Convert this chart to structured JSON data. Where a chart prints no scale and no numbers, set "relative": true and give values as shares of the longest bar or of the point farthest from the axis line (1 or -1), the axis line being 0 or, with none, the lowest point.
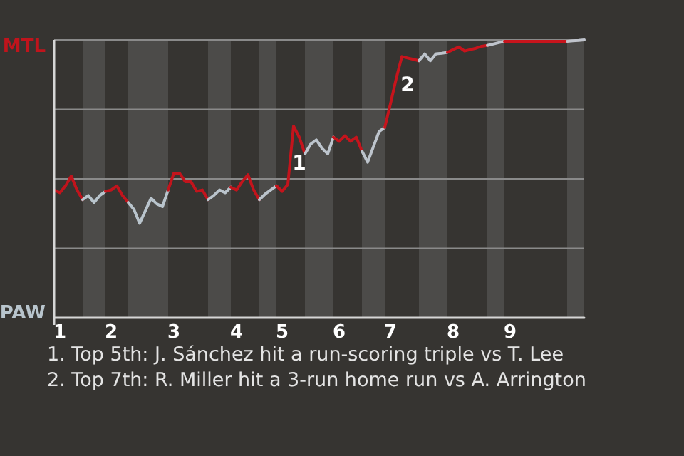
{
  "chart_data": {
    "type": "line",
    "relative": true,
    "categories": [
      null,
      "1",
      null,
      null,
      null,
      null,
      null,
      null,
      null,
      null,
      "2",
      null,
      null,
      null,
      null,
      null,
      null,
      null,
      null,
      null,
      null,
      "3",
      null,
      null,
      null,
      null,
      null,
      null,
      null,
      null,
      null,
      null,
      "4",
      null,
      null,
      null,
      null,
      null,
      null,
      null,
      "5",
      null,
      null,
      null,
      null,
      null,
      null,
      null,
      null,
      null,
      "6",
      null,
      null,
      null,
      null,
      null,
      null,
      null,
      null,
      "7",
      null,
      null,
      null,
      null,
      null,
      null,
      null,
      null,
      null,
      null,
      "8",
      null,
      null,
      null,
      null,
      null,
      null,
      null,
      null,
      null,
      "9",
      null,
      null,
      null,
      null,
      null,
      null,
      null,
      null,
      null,
      null,
      null,
      null,
      null
    ],
    "series": [
      {
        "color": "#c0141c",
        "values": [
          0.46,
          0.45,
          0.475,
          0.51,
          0.46,
          0.425,
          null,
          null,
          null,
          null,
          null,
          null,
          null,
          null,
          null,
          null,
          null,
          null,
          null,
          null,
          null,
          null,
          null,
          null,
          null,
          null,
          null,
          null,
          null,
          null,
          null,
          null,
          null,
          null,
          null,
          null,
          null,
          null,
          null,
          null,
          null,
          null,
          null,
          null,
          null,
          null,
          null,
          null,
          null,
          null,
          null,
          null,
          null,
          null,
          null,
          null,
          null,
          null,
          null,
          null,
          null,
          null,
          null,
          null,
          null,
          null,
          null,
          null,
          null,
          null,
          null,
          null,
          null,
          null,
          null,
          null,
          null,
          null,
          null,
          null,
          null,
          null,
          null,
          null,
          null,
          null,
          null,
          null,
          null,
          null,
          null,
          null,
          null,
          null
        ]
      },
      {
        "color": "#b8c4cc",
        "values": [
          null,
          null,
          null,
          null,
          null,
          0.425,
          0.44,
          0.415,
          0.44,
          0.455,
          null,
          null,
          null,
          null,
          null,
          null,
          null,
          null,
          null,
          null,
          null,
          null,
          null,
          null,
          null,
          null,
          null,
          null,
          null,
          null,
          null,
          null,
          null,
          null,
          null,
          null,
          null,
          null,
          null,
          null,
          null,
          null,
          null,
          null,
          null,
          null,
          null,
          null,
          null,
          null,
          null,
          null,
          null,
          null,
          null,
          null,
          null,
          null,
          null,
          null,
          null,
          null,
          null,
          null,
          null,
          null,
          null,
          null,
          null,
          null,
          null,
          null,
          null,
          null,
          null,
          null,
          null,
          null,
          null,
          null,
          null,
          null,
          null,
          null,
          null,
          null,
          null,
          null,
          null,
          null,
          null,
          null,
          null,
          null
        ]
      },
      {
        "color": "#c1141c",
        "values": [
          null,
          null,
          null,
          null,
          null,
          null,
          null,
          null,
          null,
          0.455,
          0.46,
          0.475,
          0.44,
          0.415,
          null,
          null,
          null,
          null,
          null,
          null,
          null,
          null,
          null,
          null,
          null,
          null,
          null,
          null,
          null,
          null,
          null,
          null,
          null,
          null,
          null,
          null,
          null,
          null,
          null,
          null,
          null,
          null,
          null,
          null,
          null,
          null,
          null,
          null,
          null,
          null,
          null,
          null,
          null,
          null,
          null,
          null,
          null,
          null,
          null,
          null,
          null,
          null,
          null,
          null,
          null,
          null,
          null,
          null,
          null,
          null,
          null,
          null,
          null,
          null,
          null,
          null,
          null,
          null,
          null,
          null,
          null,
          null,
          null,
          null,
          null,
          null,
          null,
          null,
          null,
          null,
          null,
          null,
          null,
          null
        ]
      },
      {
        "color": "#b9c4cc",
        "values": [
          null,
          null,
          null,
          null,
          null,
          null,
          null,
          null,
          null,
          null,
          null,
          null,
          null,
          0.415,
          0.39,
          0.34,
          0.385,
          0.43,
          0.41,
          0.4,
          0.46,
          null,
          null,
          null,
          null,
          null,
          null,
          null,
          null,
          null,
          null,
          null,
          null,
          null,
          null,
          null,
          null,
          null,
          null,
          null,
          null,
          null,
          null,
          null,
          null,
          null,
          null,
          null,
          null,
          null,
          null,
          null,
          null,
          null,
          null,
          null,
          null,
          null,
          null,
          null,
          null,
          null,
          null,
          null,
          null,
          null,
          null,
          null,
          null,
          null,
          null,
          null,
          null,
          null,
          null,
          null,
          null,
          null,
          null,
          null,
          null,
          null,
          null,
          null,
          null,
          null,
          null,
          null,
          null,
          null,
          null,
          null,
          null,
          null
        ]
      },
      {
        "color": "#c2141c",
        "values": [
          null,
          null,
          null,
          null,
          null,
          null,
          null,
          null,
          null,
          null,
          null,
          null,
          null,
          null,
          null,
          null,
          null,
          null,
          null,
          null,
          0.46,
          0.52,
          0.52,
          0.49,
          0.49,
          0.455,
          0.46,
          0.425,
          null,
          null,
          null,
          null,
          null,
          null,
          null,
          null,
          null,
          null,
          null,
          null,
          null,
          null,
          null,
          null,
          null,
          null,
          null,
          null,
          null,
          null,
          null,
          null,
          null,
          null,
          null,
          null,
          null,
          null,
          null,
          null,
          null,
          null,
          null,
          null,
          null,
          null,
          null,
          null,
          null,
          null,
          null,
          null,
          null,
          null,
          null,
          null,
          null,
          null,
          null,
          null,
          null,
          null,
          null,
          null,
          null,
          null,
          null,
          null,
          null,
          null,
          null,
          null,
          null,
          null
        ]
      },
      {
        "color": "#bac4cc",
        "values": [
          null,
          null,
          null,
          null,
          null,
          null,
          null,
          null,
          null,
          null,
          null,
          null,
          null,
          null,
          null,
          null,
          null,
          null,
          null,
          null,
          null,
          null,
          null,
          null,
          null,
          null,
          null,
          0.425,
          0.44,
          0.46,
          0.45,
          0.47,
          null,
          null,
          null,
          null,
          null,
          null,
          null,
          null,
          null,
          null,
          null,
          null,
          null,
          null,
          null,
          null,
          null,
          null,
          null,
          null,
          null,
          null,
          null,
          null,
          null,
          null,
          null,
          null,
          null,
          null,
          null,
          null,
          null,
          null,
          null,
          null,
          null,
          null,
          null,
          null,
          null,
          null,
          null,
          null,
          null,
          null,
          null,
          null,
          null,
          null,
          null,
          null,
          null,
          null,
          null,
          null,
          null,
          null,
          null,
          null,
          null,
          null
        ]
      },
      {
        "color": "#c3141c",
        "values": [
          null,
          null,
          null,
          null,
          null,
          null,
          null,
          null,
          null,
          null,
          null,
          null,
          null,
          null,
          null,
          null,
          null,
          null,
          null,
          null,
          null,
          null,
          null,
          null,
          null,
          null,
          null,
          null,
          null,
          null,
          null,
          0.47,
          0.46,
          0.49,
          0.515,
          0.46,
          0.425,
          null,
          null,
          null,
          null,
          null,
          null,
          null,
          null,
          null,
          null,
          null,
          null,
          null,
          null,
          null,
          null,
          null,
          null,
          null,
          null,
          null,
          null,
          null,
          null,
          null,
          null,
          null,
          null,
          null,
          null,
          null,
          null,
          null,
          null,
          null,
          null,
          null,
          null,
          null,
          null,
          null,
          null,
          null,
          null,
          null,
          null,
          null,
          null,
          null,
          null,
          null,
          null,
          null,
          null,
          null,
          null,
          null
        ]
      },
      {
        "color": "#bbc4cc",
        "values": [
          null,
          null,
          null,
          null,
          null,
          null,
          null,
          null,
          null,
          null,
          null,
          null,
          null,
          null,
          null,
          null,
          null,
          null,
          null,
          null,
          null,
          null,
          null,
          null,
          null,
          null,
          null,
          null,
          null,
          null,
          null,
          null,
          null,
          null,
          null,
          null,
          0.425,
          0.445,
          0.46,
          0.475,
          null,
          null,
          null,
          null,
          null,
          null,
          null,
          null,
          null,
          null,
          null,
          null,
          null,
          null,
          null,
          null,
          null,
          null,
          null,
          null,
          null,
          null,
          null,
          null,
          null,
          null,
          null,
          null,
          null,
          null,
          null,
          null,
          null,
          null,
          null,
          null,
          null,
          null,
          null,
          null,
          null,
          null,
          null,
          null,
          null,
          null,
          null,
          null,
          null,
          null,
          null,
          null,
          null,
          null
        ]
      },
      {
        "color": "#c4141c",
        "values": [
          null,
          null,
          null,
          null,
          null,
          null,
          null,
          null,
          null,
          null,
          null,
          null,
          null,
          null,
          null,
          null,
          null,
          null,
          null,
          null,
          null,
          null,
          null,
          null,
          null,
          null,
          null,
          null,
          null,
          null,
          null,
          null,
          null,
          null,
          null,
          null,
          null,
          null,
          null,
          0.475,
          0.455,
          0.48,
          0.69,
          0.65,
          0.59,
          null,
          null,
          null,
          null,
          null,
          null,
          null,
          null,
          null,
          null,
          null,
          null,
          null,
          null,
          null,
          null,
          null,
          null,
          null,
          null,
          null,
          null,
          null,
          null,
          null,
          null,
          null,
          null,
          null,
          null,
          null,
          null,
          null,
          null,
          null,
          null,
          null,
          null,
          null,
          null,
          null,
          null,
          null,
          null,
          null,
          null,
          null,
          null,
          null
        ]
      },
      {
        "color": "#bcc4cc",
        "values": [
          null,
          null,
          null,
          null,
          null,
          null,
          null,
          null,
          null,
          null,
          null,
          null,
          null,
          null,
          null,
          null,
          null,
          null,
          null,
          null,
          null,
          null,
          null,
          null,
          null,
          null,
          null,
          null,
          null,
          null,
          null,
          null,
          null,
          null,
          null,
          null,
          null,
          null,
          null,
          null,
          null,
          null,
          null,
          null,
          0.59,
          0.625,
          0.64,
          0.61,
          0.59,
          0.65,
          null,
          null,
          null,
          null,
          null,
          null,
          null,
          null,
          null,
          null,
          null,
          null,
          null,
          null,
          null,
          null,
          null,
          null,
          null,
          null,
          null,
          null,
          null,
          null,
          null,
          null,
          null,
          null,
          null,
          null,
          null,
          null,
          null,
          null,
          null,
          null,
          null,
          null,
          null,
          null,
          null,
          null,
          null,
          null
        ]
      },
      {
        "color": "#c5141c",
        "values": [
          null,
          null,
          null,
          null,
          null,
          null,
          null,
          null,
          null,
          null,
          null,
          null,
          null,
          null,
          null,
          null,
          null,
          null,
          null,
          null,
          null,
          null,
          null,
          null,
          null,
          null,
          null,
          null,
          null,
          null,
          null,
          null,
          null,
          null,
          null,
          null,
          null,
          null,
          null,
          null,
          null,
          null,
          null,
          null,
          null,
          null,
          null,
          null,
          null,
          0.65,
          0.635,
          0.655,
          0.635,
          0.65,
          0.6,
          null,
          null,
          null,
          null,
          null,
          null,
          null,
          null,
          null,
          null,
          null,
          null,
          null,
          null,
          null,
          null,
          null,
          null,
          null,
          null,
          null,
          null,
          null,
          null,
          null,
          null,
          null,
          null,
          null,
          null,
          null,
          null,
          null,
          null,
          null,
          null,
          null,
          null,
          null
        ]
      },
      {
        "color": "#bdc4cc",
        "values": [
          null,
          null,
          null,
          null,
          null,
          null,
          null,
          null,
          null,
          null,
          null,
          null,
          null,
          null,
          null,
          null,
          null,
          null,
          null,
          null,
          null,
          null,
          null,
          null,
          null,
          null,
          null,
          null,
          null,
          null,
          null,
          null,
          null,
          null,
          null,
          null,
          null,
          null,
          null,
          null,
          null,
          null,
          null,
          null,
          null,
          null,
          null,
          null,
          null,
          null,
          null,
          null,
          null,
          null,
          0.6,
          0.56,
          0.615,
          0.67,
          0.685,
          null,
          null,
          null,
          null,
          null,
          null,
          null,
          null,
          null,
          null,
          null,
          null,
          null,
          null,
          null,
          null,
          null,
          null,
          null,
          null,
          null,
          null,
          null,
          null,
          null,
          null,
          null,
          null,
          null,
          null,
          null,
          null,
          null,
          null,
          null
        ]
      },
      {
        "color": "#c6141c",
        "values": [
          null,
          null,
          null,
          null,
          null,
          null,
          null,
          null,
          null,
          null,
          null,
          null,
          null,
          null,
          null,
          null,
          null,
          null,
          null,
          null,
          null,
          null,
          null,
          null,
          null,
          null,
          null,
          null,
          null,
          null,
          null,
          null,
          null,
          null,
          null,
          null,
          null,
          null,
          null,
          null,
          null,
          null,
          null,
          null,
          null,
          null,
          null,
          null,
          null,
          null,
          null,
          null,
          null,
          null,
          null,
          null,
          null,
          null,
          0.685,
          0.77,
          0.86,
          0.94,
          0.935,
          0.93,
          0.925,
          null,
          null,
          null,
          null,
          null,
          null,
          null,
          null,
          null,
          null,
          null,
          null,
          null,
          null,
          null,
          null,
          null,
          null,
          null,
          null,
          null,
          null,
          null,
          null,
          null,
          null,
          null,
          null,
          null
        ]
      },
      {
        "color": "#bec4cc",
        "values": [
          null,
          null,
          null,
          null,
          null,
          null,
          null,
          null,
          null,
          null,
          null,
          null,
          null,
          null,
          null,
          null,
          null,
          null,
          null,
          null,
          null,
          null,
          null,
          null,
          null,
          null,
          null,
          null,
          null,
          null,
          null,
          null,
          null,
          null,
          null,
          null,
          null,
          null,
          null,
          null,
          null,
          null,
          null,
          null,
          null,
          null,
          null,
          null,
          null,
          null,
          null,
          null,
          null,
          null,
          null,
          null,
          null,
          null,
          null,
          null,
          null,
          null,
          null,
          null,
          0.925,
          0.95,
          0.925,
          0.95,
          0.952,
          0.955,
          null,
          null,
          null,
          null,
          null,
          null,
          null,
          null,
          null,
          null,
          null,
          null,
          null,
          null,
          null,
          null,
          null,
          null,
          null,
          null,
          null,
          null,
          null,
          null
        ]
      },
      {
        "color": "#c7141c",
        "values": [
          null,
          null,
          null,
          null,
          null,
          null,
          null,
          null,
          null,
          null,
          null,
          null,
          null,
          null,
          null,
          null,
          null,
          null,
          null,
          null,
          null,
          null,
          null,
          null,
          null,
          null,
          null,
          null,
          null,
          null,
          null,
          null,
          null,
          null,
          null,
          null,
          null,
          null,
          null,
          null,
          null,
          null,
          null,
          null,
          null,
          null,
          null,
          null,
          null,
          null,
          null,
          null,
          null,
          null,
          null,
          null,
          null,
          null,
          null,
          null,
          null,
          null,
          null,
          null,
          null,
          null,
          null,
          null,
          null,
          0.955,
          0.965,
          0.975,
          0.96,
          0.965,
          0.97,
          0.977,
          0.98,
          null,
          null,
          null,
          null,
          null,
          null,
          null,
          null,
          null,
          null,
          null,
          null,
          null,
          null,
          null,
          null,
          null
        ]
      },
      {
        "color": "#bfc4cc",
        "values": [
          null,
          null,
          null,
          null,
          null,
          null,
          null,
          null,
          null,
          null,
          null,
          null,
          null,
          null,
          null,
          null,
          null,
          null,
          null,
          null,
          null,
          null,
          null,
          null,
          null,
          null,
          null,
          null,
          null,
          null,
          null,
          null,
          null,
          null,
          null,
          null,
          null,
          null,
          null,
          null,
          null,
          null,
          null,
          null,
          null,
          null,
          null,
          null,
          null,
          null,
          null,
          null,
          null,
          null,
          null,
          null,
          null,
          null,
          null,
          null,
          null,
          null,
          null,
          null,
          null,
          null,
          null,
          null,
          null,
          null,
          null,
          null,
          null,
          null,
          null,
          null,
          0.98,
          0.985,
          0.99,
          0.995,
          null,
          null,
          null,
          null,
          null,
          null,
          null,
          null,
          null,
          null,
          null,
          null,
          null,
          null
        ]
      },
      {
        "color": "#c8141c",
        "values": [
          null,
          null,
          null,
          null,
          null,
          null,
          null,
          null,
          null,
          null,
          null,
          null,
          null,
          null,
          null,
          null,
          null,
          null,
          null,
          null,
          null,
          null,
          null,
          null,
          null,
          null,
          null,
          null,
          null,
          null,
          null,
          null,
          null,
          null,
          null,
          null,
          null,
          null,
          null,
          null,
          null,
          null,
          null,
          null,
          null,
          null,
          null,
          null,
          null,
          null,
          null,
          null,
          null,
          null,
          null,
          null,
          null,
          null,
          null,
          null,
          null,
          null,
          null,
          null,
          null,
          null,
          null,
          null,
          null,
          null,
          null,
          null,
          null,
          null,
          null,
          null,
          null,
          null,
          null,
          0.995,
          0.995,
          0.995,
          0.995,
          0.995,
          0.995,
          0.995,
          0.995,
          0.995,
          0.995,
          0.995,
          0.995,
          null,
          null,
          null
        ]
      },
      {
        "color": "#c0c4cc",
        "values": [
          null,
          null,
          null,
          null,
          null,
          null,
          null,
          null,
          null,
          null,
          null,
          null,
          null,
          null,
          null,
          null,
          null,
          null,
          null,
          null,
          null,
          null,
          null,
          null,
          null,
          null,
          null,
          null,
          null,
          null,
          null,
          null,
          null,
          null,
          null,
          null,
          null,
          null,
          null,
          null,
          null,
          null,
          null,
          null,
          null,
          null,
          null,
          null,
          null,
          null,
          null,
          null,
          null,
          null,
          null,
          null,
          null,
          null,
          null,
          null,
          null,
          null,
          null,
          null,
          null,
          null,
          null,
          null,
          null,
          null,
          null,
          null,
          null,
          null,
          null,
          null,
          null,
          null,
          null,
          null,
          null,
          null,
          null,
          null,
          null,
          null,
          null,
          null,
          null,
          null,
          0.995,
          0.997,
          0.998,
          1
        ]
      }
    ],
    "marker": "none",
    "ref_lines": [
      {
        "axis": "y",
        "value": 0.25,
        "color": "#8a8a8a"
      },
      {
        "axis": "y",
        "value": 0.5,
        "color": "#8a8a8a"
      },
      {
        "axis": "y",
        "value": 0.75,
        "color": "#8a8a8a"
      },
      {
        "axis": "y",
        "value": 1,
        "color": "#8a8a8a"
      }
    ],
    "annotations": [
      "MTL",
      "PAW",
      "1",
      "2",
      "1. Top 5th: J. Sánchez hit a run-scoring triple vs T. Lee",
      "2. Top 7th: R. Miller hit a 3-run home run vs A. Arrington"
    ]
  }
}
